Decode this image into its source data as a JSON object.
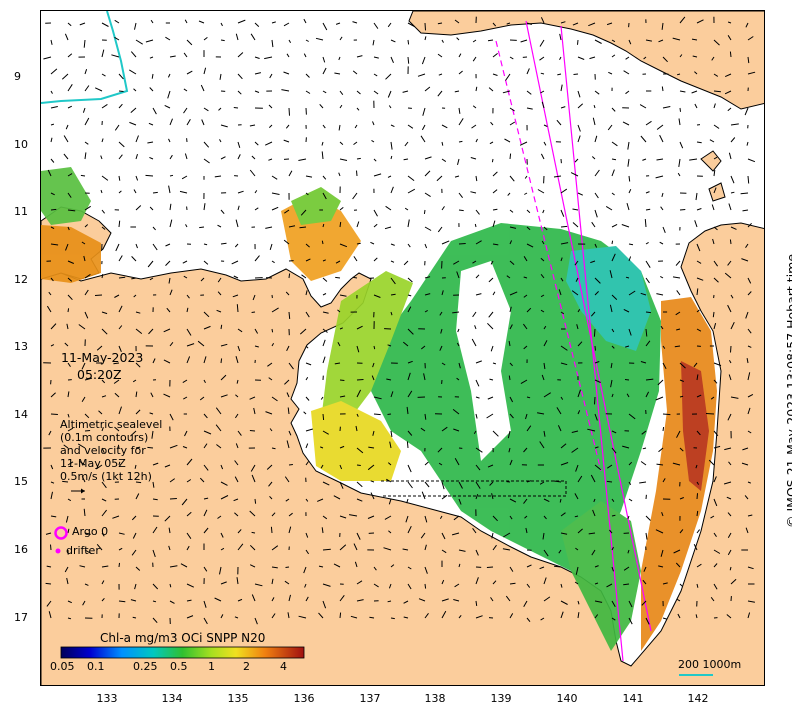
{
  "map": {
    "date": "11-May-2023",
    "time": "05:20Z",
    "sealevel_lines": [
      "Altimetric sealevel",
      "(0.1m contours)",
      "and velocity for",
      "11-May 05Z",
      "0.5m/s (1kt 12h)"
    ],
    "legend": {
      "argo": "Argo 0",
      "drifter": "drifter",
      "argo_color": "#ff00ff"
    },
    "colorbar": {
      "title": "Chl-a mg/m3 OCi SNPP N20",
      "ticks": [
        "0.05",
        "0.1",
        "0.25",
        "0.5",
        "1",
        "2",
        "4"
      ]
    },
    "scale": {
      "label": "200  1000m"
    },
    "credit": "© IMOS 21-May-2023 13:08:57 Hobart time",
    "lat_ticks": [
      "9",
      "10",
      "11",
      "12",
      "13",
      "14",
      "15",
      "16",
      "17"
    ],
    "lon_ticks": [
      "133",
      "134",
      "135",
      "136",
      "137",
      "138",
      "139",
      "140",
      "141",
      "142"
    ],
    "colors": {
      "land": "#fbcd9c",
      "ocean": "#ffffff",
      "track": "#ff00ff",
      "contour": "#20c8c8"
    }
  }
}
